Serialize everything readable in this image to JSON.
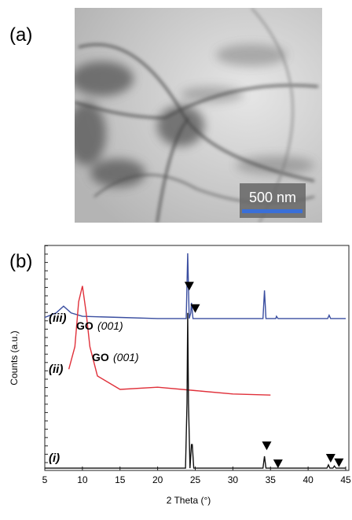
{
  "panel_a": {
    "label": "(a)",
    "scale_bar": "500 nm"
  },
  "chart_data": {
    "type": "line",
    "panel_label": "(b)",
    "x_label": "2 Theta (°)",
    "y_label": "Counts (a.u.)",
    "xlim": [
      5,
      45
    ],
    "xticks": [
      5,
      10,
      15,
      20,
      25,
      30,
      35,
      40,
      45
    ],
    "ylim": [
      0,
      100
    ],
    "series": [
      {
        "name": "(iii)",
        "color": "#3a4ea0",
        "x": [
          5,
          6.5,
          7.5,
          8.5,
          10,
          15,
          20,
          23.8,
          24.0,
          24.2,
          24.4,
          24.5,
          24.7,
          34.0,
          34.2,
          34.4,
          35.7,
          35.8,
          36,
          42.6,
          42.8,
          43,
          45
        ],
        "values": [
          68,
          70,
          73,
          70,
          68.5,
          68,
          67.5,
          67.5,
          96.5,
          67.5,
          70,
          74.5,
          67.5,
          67.5,
          80,
          67.5,
          67.5,
          68.5,
          67.5,
          67.5,
          69,
          67.5,
          67.5
        ]
      },
      {
        "name": "(ii)",
        "color": "#e0303a",
        "x": [
          8.2,
          9,
          9.5,
          10,
          10.5,
          11,
          12,
          15,
          20,
          25,
          30,
          35
        ],
        "values": [
          45,
          55,
          75,
          82,
          70,
          55,
          42,
          36,
          37,
          35.5,
          34,
          33.5
        ]
      },
      {
        "name": "(i)",
        "color": "#111111",
        "x": [
          5,
          23.7,
          23.9,
          24.0,
          24.1,
          24.3,
          24.5,
          24.6,
          24.8,
          34.0,
          34.2,
          34.4,
          42.5,
          42.7,
          42.9,
          43.3,
          43.5,
          43.7,
          45
        ],
        "values": [
          1,
          1,
          30,
          70,
          30,
          1,
          11.5,
          11.5,
          1,
          1,
          6.3,
          1,
          1,
          2.5,
          1,
          1,
          2,
          1,
          1
        ]
      }
    ],
    "annotations": {
      "go": "GO",
      "plane": "(001)"
    },
    "markers": {
      "x": [
        24.2,
        25.0,
        34.5,
        36.0,
        43.0,
        44.1
      ],
      "y": [
        80,
        70,
        9,
        1,
        3.5,
        1.5
      ]
    }
  }
}
